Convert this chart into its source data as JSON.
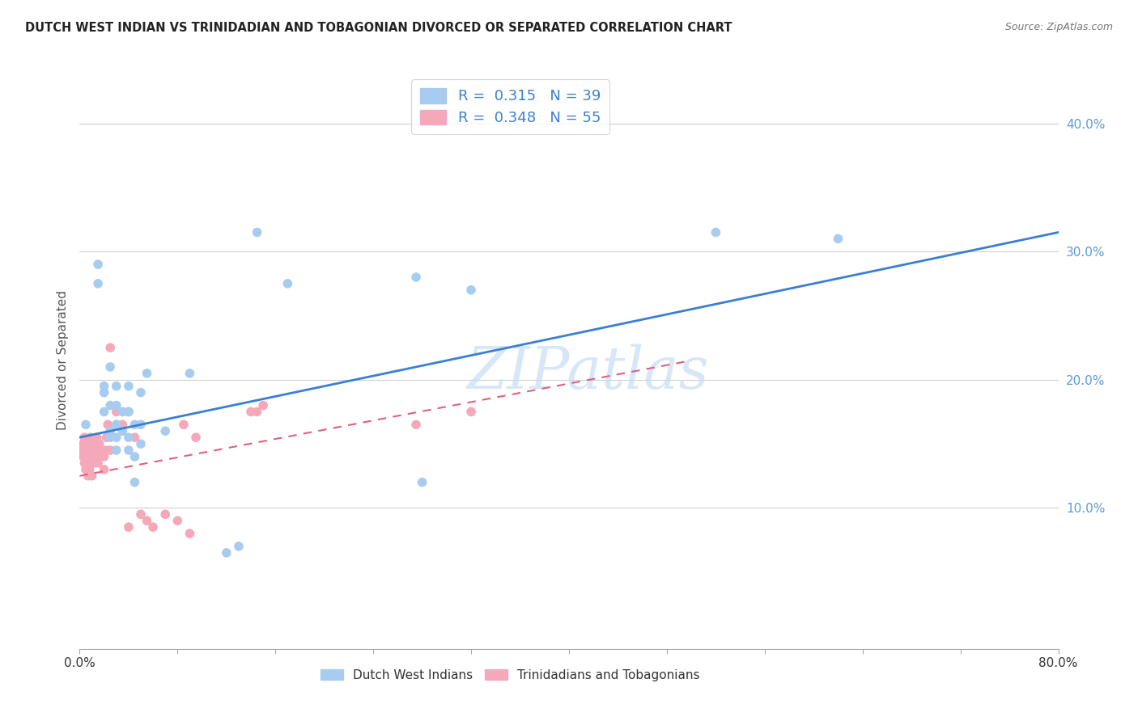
{
  "title": "DUTCH WEST INDIAN VS TRINIDADIAN AND TOBAGONIAN DIVORCED OR SEPARATED CORRELATION CHART",
  "source": "Source: ZipAtlas.com",
  "ylabel": "Divorced or Separated",
  "ytick_labels": [
    "10.0%",
    "20.0%",
    "30.0%",
    "40.0%"
  ],
  "ytick_values": [
    0.1,
    0.2,
    0.3,
    0.4
  ],
  "xlim": [
    0.0,
    0.8
  ],
  "ylim": [
    -0.01,
    0.44
  ],
  "legend1_label": "R =  0.315   N = 39",
  "legend2_label": "R =  0.348   N = 55",
  "legend_bottom_label1": "Dutch West Indians",
  "legend_bottom_label2": "Trinidadians and Tobagonians",
  "color_blue": "#A8CCF0",
  "color_pink": "#F5A8B8",
  "line_color_blue": "#3A7FD4",
  "line_color_pink": "#E06080",
  "line_color_yticks": "#5B9BD5",
  "watermark_color": "#C8DEF5",
  "blue_line_x0": 0.0,
  "blue_line_y0": 0.155,
  "blue_line_x1": 0.8,
  "blue_line_y1": 0.315,
  "pink_line_x0": 0.0,
  "pink_line_y0": 0.125,
  "pink_line_x1": 0.5,
  "pink_line_y1": 0.215,
  "blue_dots_x": [
    0.005,
    0.015,
    0.015,
    0.02,
    0.02,
    0.02,
    0.025,
    0.025,
    0.025,
    0.025,
    0.03,
    0.03,
    0.03,
    0.03,
    0.03,
    0.035,
    0.035,
    0.04,
    0.04,
    0.04,
    0.04,
    0.045,
    0.045,
    0.045,
    0.05,
    0.05,
    0.05,
    0.055,
    0.07,
    0.09,
    0.12,
    0.13,
    0.145,
    0.17,
    0.275,
    0.28,
    0.32,
    0.52,
    0.62
  ],
  "blue_dots_y": [
    0.165,
    0.275,
    0.29,
    0.175,
    0.19,
    0.195,
    0.155,
    0.16,
    0.18,
    0.21,
    0.145,
    0.155,
    0.165,
    0.18,
    0.195,
    0.16,
    0.175,
    0.145,
    0.155,
    0.175,
    0.195,
    0.12,
    0.14,
    0.165,
    0.15,
    0.165,
    0.19,
    0.205,
    0.16,
    0.205,
    0.065,
    0.07,
    0.315,
    0.275,
    0.28,
    0.12,
    0.27,
    0.315,
    0.31
  ],
  "pink_dots_x": [
    0.002,
    0.003,
    0.003,
    0.004,
    0.004,
    0.005,
    0.005,
    0.005,
    0.006,
    0.006,
    0.007,
    0.007,
    0.008,
    0.008,
    0.009,
    0.01,
    0.01,
    0.01,
    0.011,
    0.011,
    0.012,
    0.013,
    0.013,
    0.014,
    0.014,
    0.015,
    0.016,
    0.016,
    0.018,
    0.02,
    0.02,
    0.021,
    0.022,
    0.023,
    0.025,
    0.025,
    0.03,
    0.03,
    0.035,
    0.04,
    0.04,
    0.045,
    0.05,
    0.055,
    0.06,
    0.07,
    0.08,
    0.085,
    0.09,
    0.095,
    0.14,
    0.145,
    0.15,
    0.275,
    0.32
  ],
  "pink_dots_y": [
    0.145,
    0.14,
    0.15,
    0.135,
    0.155,
    0.13,
    0.14,
    0.15,
    0.135,
    0.145,
    0.125,
    0.14,
    0.13,
    0.145,
    0.155,
    0.125,
    0.135,
    0.15,
    0.14,
    0.15,
    0.135,
    0.145,
    0.15,
    0.14,
    0.155,
    0.135,
    0.14,
    0.15,
    0.145,
    0.13,
    0.14,
    0.145,
    0.155,
    0.165,
    0.145,
    0.225,
    0.165,
    0.175,
    0.165,
    0.085,
    0.175,
    0.155,
    0.095,
    0.09,
    0.085,
    0.095,
    0.09,
    0.165,
    0.08,
    0.155,
    0.175,
    0.175,
    0.18,
    0.165,
    0.175
  ]
}
